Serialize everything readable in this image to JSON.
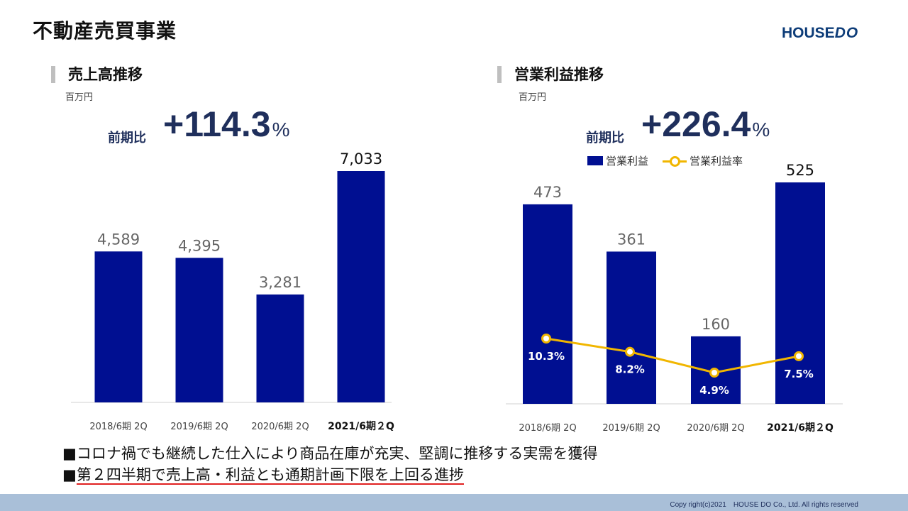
{
  "page": {
    "title": "不動産売買事業",
    "logo": {
      "part1": "HOUSE",
      "part2": "DO"
    },
    "footer": "Copy right(c)2021　HOUSE DO Co., Ltd. All rights reserved"
  },
  "colors": {
    "bar": "#000f91",
    "line": "#f1b600",
    "accent_text": "#1f2f5c",
    "underline": "#e02020"
  },
  "left": {
    "section_title": "売上高推移",
    "unit": "百万円",
    "yoy_label": "前期比",
    "yoy_value": "+114.3",
    "yoy_pct": "%"
  },
  "right": {
    "section_title": "営業利益推移",
    "unit": "百万円",
    "yoy_label": "前期比",
    "yoy_value": "+226.4",
    "yoy_pct": "%",
    "legend_bar": "営業利益",
    "legend_line": "営業利益率"
  },
  "bullets": [
    {
      "marker": "■",
      "text": "コロナ禍でも継続した仕入により商品在庫が充実、堅調に推移する実需を獲得"
    },
    {
      "marker": "■",
      "text": "第２四半期で売上高・利益とも通期計画下限を上回る進捗"
    }
  ],
  "chart_data": [
    {
      "type": "bar",
      "title": "売上高推移",
      "unit": "百万円",
      "categories": [
        "2018/6期 2Q",
        "2019/6期 2Q",
        "2020/6期 2Q",
        "2021/6期２Q"
      ],
      "values": [
        4589,
        4395,
        3281,
        7033
      ],
      "labels": [
        "4,589",
        "4,395",
        "3,281",
        "7,033"
      ]
    },
    {
      "type": "bar",
      "title": "営業利益推移",
      "unit": "百万円",
      "categories": [
        "2018/6期 2Q",
        "2019/6期 2Q",
        "2020/6期 2Q",
        "2021/6期２Q"
      ],
      "series": [
        {
          "name": "営業利益",
          "type": "bar",
          "values": [
            473,
            361,
            160,
            525
          ],
          "labels": [
            "473",
            "361",
            "160",
            "525"
          ]
        },
        {
          "name": "営業利益率",
          "type": "line",
          "values": [
            10.3,
            8.2,
            4.9,
            7.5
          ],
          "labels": [
            "10.3%",
            "8.2%",
            "4.9%",
            "7.5%"
          ]
        }
      ]
    }
  ]
}
